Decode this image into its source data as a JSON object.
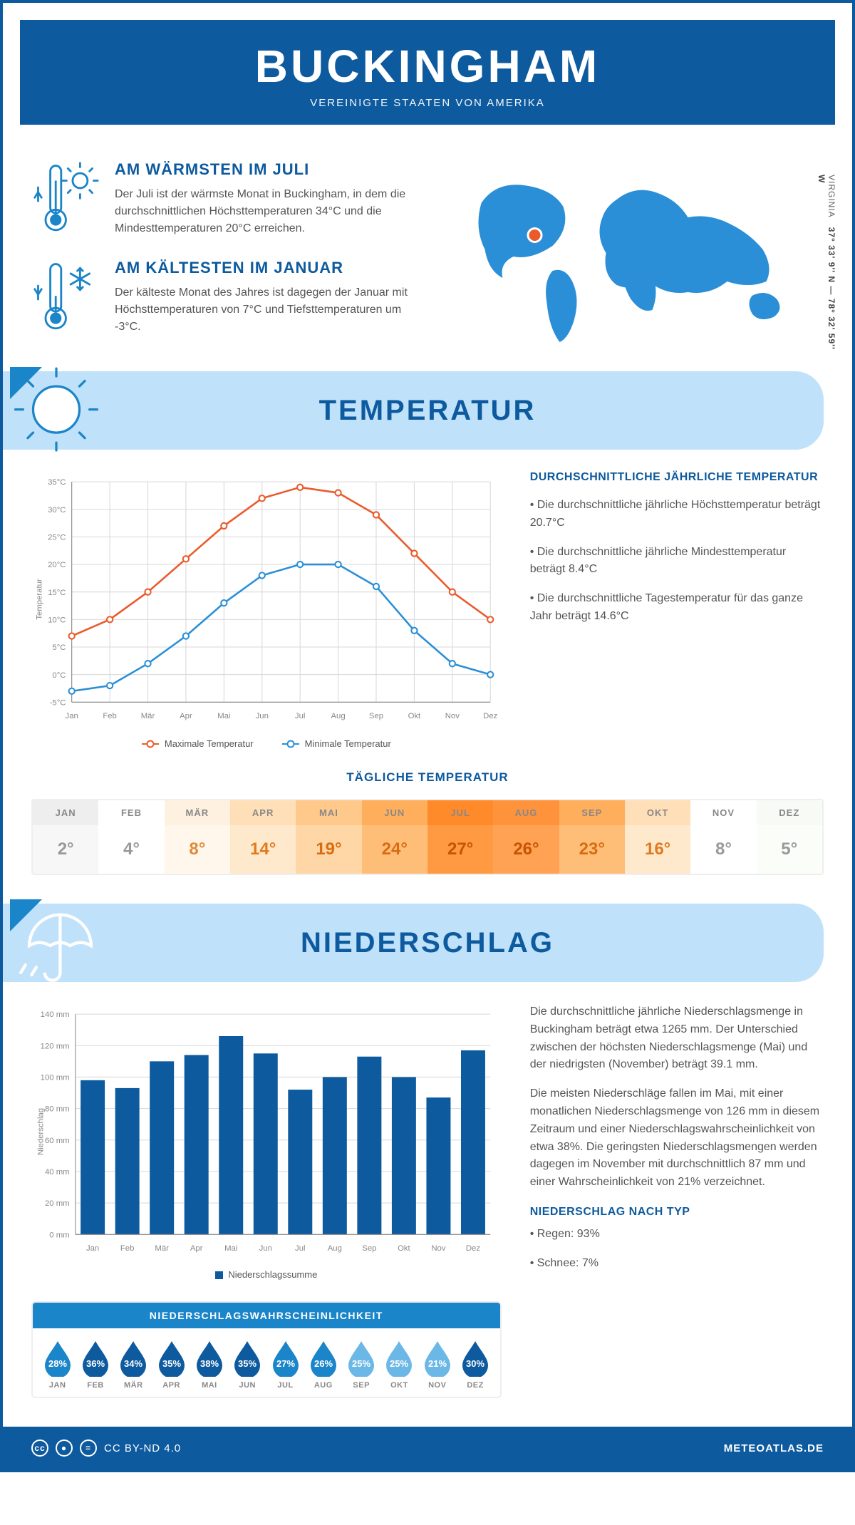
{
  "header": {
    "city": "BUCKINGHAM",
    "country": "VEREINIGTE STAATEN VON AMERIKA"
  },
  "coords": {
    "text": "37° 33' 9'' N — 78° 32' 59'' W",
    "region": "VIRGINIA"
  },
  "warm": {
    "title": "AM WÄRMSTEN IM JULI",
    "text": "Der Juli ist der wärmste Monat in Buckingham, in dem die durchschnittlichen Höchsttemperaturen 34°C und die Mindesttemperaturen 20°C erreichen."
  },
  "cold": {
    "title": "AM KÄLTESTEN IM JANUAR",
    "text": "Der kälteste Monat des Jahres ist dagegen der Januar mit Höchsttemperaturen von 7°C und Tiefsttemperaturen um -3°C."
  },
  "sections": {
    "temp": "TEMPERATUR",
    "precip": "NIEDERSCHLAG"
  },
  "tempchart": {
    "type": "line",
    "months": [
      "Jan",
      "Feb",
      "Mär",
      "Apr",
      "Mai",
      "Jun",
      "Jul",
      "Aug",
      "Sep",
      "Okt",
      "Nov",
      "Dez"
    ],
    "max_values": [
      7,
      10,
      15,
      21,
      27,
      32,
      34,
      33,
      29,
      22,
      15,
      10
    ],
    "min_values": [
      -3,
      -2,
      2,
      7,
      13,
      18,
      20,
      20,
      16,
      8,
      2,
      0
    ],
    "ylim": [
      -5,
      35
    ],
    "ytick_step": 5,
    "ylabel": "Temperatur",
    "ytick_suffix": "°C",
    "max_color": "#ea5b2c",
    "min_color": "#2a8fd6",
    "grid_color": "#d8d8d8",
    "axis_color": "#888",
    "max_label": "Maximale Temperatur",
    "min_label": "Minimale Temperatur"
  },
  "tempside": {
    "heading": "DURCHSCHNITTLICHE JÄHRLICHE TEMPERATUR",
    "p1": "• Die durchschnittliche jährliche Höchsttemperatur beträgt 20.7°C",
    "p2": "• Die durchschnittliche jährliche Mindesttemperatur beträgt 8.4°C",
    "p3": "• Die durchschnittliche Tagestemperatur für das ganze Jahr beträgt 14.6°C"
  },
  "daily": {
    "title": "TÄGLICHE TEMPERATUR",
    "months": [
      "JAN",
      "FEB",
      "MÄR",
      "APR",
      "MAI",
      "JUN",
      "JUL",
      "AUG",
      "SEP",
      "OKT",
      "NOV",
      "DEZ"
    ],
    "values": [
      "2°",
      "4°",
      "8°",
      "14°",
      "19°",
      "24°",
      "27°",
      "26°",
      "23°",
      "16°",
      "8°",
      "5°"
    ],
    "head_colors": [
      "#eeeeee",
      "#ffffff",
      "#fff1e0",
      "#ffdfb8",
      "#ffc98c",
      "#ffae5c",
      "#ff8a2a",
      "#ff933c",
      "#ffae5c",
      "#ffdfb8",
      "#ffffff",
      "#f7faf5"
    ],
    "val_colors": [
      "#f7f7f7",
      "#ffffff",
      "#fff7ec",
      "#ffe9cc",
      "#ffd6a5",
      "#ffbe78",
      "#ff9a42",
      "#ffa254",
      "#ffbe78",
      "#ffe9cc",
      "#ffffff",
      "#fbfdf9"
    ],
    "txt_colors": [
      "#999999",
      "#999999",
      "#e08a3a",
      "#e07a20",
      "#d96c10",
      "#d96c10",
      "#c65400",
      "#c65400",
      "#d96c10",
      "#e07a20",
      "#999999",
      "#999999"
    ]
  },
  "precipchart": {
    "type": "bar",
    "months": [
      "Jan",
      "Feb",
      "Mär",
      "Apr",
      "Mai",
      "Jun",
      "Jul",
      "Aug",
      "Sep",
      "Okt",
      "Nov",
      "Dez"
    ],
    "values": [
      98,
      93,
      110,
      114,
      126,
      115,
      92,
      100,
      113,
      100,
      87,
      117
    ],
    "ylim": [
      0,
      140
    ],
    "ytick_step": 20,
    "ylabel": "Niederschlag",
    "ytick_suffix": " mm",
    "bar_color": "#0d5a9e",
    "grid_color": "#d8d8d8",
    "legend_label": "Niederschlagssumme"
  },
  "prob": {
    "title": "NIEDERSCHLAGSWAHRSCHEINLICHKEIT",
    "months": [
      "JAN",
      "FEB",
      "MÄR",
      "APR",
      "MAI",
      "JUN",
      "JUL",
      "AUG",
      "SEP",
      "OKT",
      "NOV",
      "DEZ"
    ],
    "values": [
      "28%",
      "36%",
      "34%",
      "35%",
      "38%",
      "35%",
      "27%",
      "26%",
      "25%",
      "25%",
      "21%",
      "30%"
    ],
    "colors": [
      "#1b85c9",
      "#0d5a9e",
      "#0d5a9e",
      "#0d5a9e",
      "#0d5a9e",
      "#0d5a9e",
      "#1b85c9",
      "#1b85c9",
      "#6bb8e6",
      "#6bb8e6",
      "#6bb8e6",
      "#0d5a9e"
    ]
  },
  "preciptext": {
    "p1": "Die durchschnittliche jährliche Niederschlagsmenge in Buckingham beträgt etwa 1265 mm. Der Unterschied zwischen der höchsten Niederschlagsmenge (Mai) und der niedrigsten (November) beträgt 39.1 mm.",
    "p2": "Die meisten Niederschläge fallen im Mai, mit einer monatlichen Niederschlagsmenge von 126 mm in diesem Zeitraum und einer Niederschlagswahrscheinlichkeit von etwa 38%. Die geringsten Niederschlagsmengen werden dagegen im November mit durchschnittlich 87 mm und einer Wahrscheinlichkeit von 21% verzeichnet.",
    "h": "NIEDERSCHLAG NACH TYP",
    "b1": "• Regen: 93%",
    "b2": "• Schnee: 7%"
  },
  "footer": {
    "license": "CC BY-ND 4.0",
    "site": "METEOATLAS.DE"
  },
  "colors": {
    "primary": "#0d5a9e",
    "accent": "#1b85c9",
    "lightblue": "#bfe1fa",
    "map": "#2a8fd6",
    "marker": "#ea5b2c"
  }
}
